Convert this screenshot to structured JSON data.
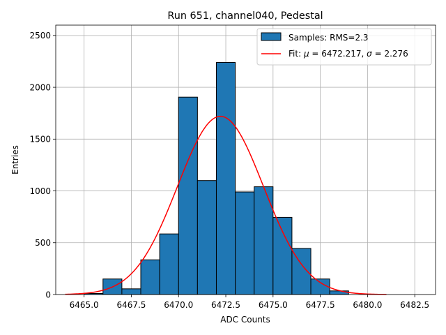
{
  "chart_data": {
    "type": "bar",
    "title": "Run 651, channel040, Pedestal",
    "xlabel": "ADC Counts",
    "ylabel": "Entries",
    "xlim": [
      6463.5,
      6483.6
    ],
    "ylim": [
      0,
      2600
    ],
    "grid": true,
    "legend_position": "top-right",
    "x_ticks": [
      6465.0,
      6467.5,
      6470.0,
      6472.5,
      6475.0,
      6477.5,
      6480.0,
      6482.5
    ],
    "x_tick_labels": [
      "6465.0",
      "6467.5",
      "6470.0",
      "6472.5",
      "6475.0",
      "6477.5",
      "6480.0",
      "6482.5"
    ],
    "y_ticks": [
      0,
      500,
      1000,
      1500,
      2000,
      2500
    ],
    "y_tick_labels": [
      "0",
      "500",
      "1000",
      "1500",
      "2000",
      "2500"
    ],
    "histogram": {
      "name": "Samples: RMS=2.3",
      "color": "#1f77b4",
      "edge_color": "#000000",
      "bin_edges": [
        6464.0,
        6465.0,
        6466.0,
        6467.0,
        6468.0,
        6469.0,
        6470.0,
        6471.0,
        6472.0,
        6473.0,
        6474.0,
        6475.0,
        6476.0,
        6477.0,
        6478.0,
        6479.0,
        6480.0,
        6481.0,
        6482.0,
        6483.0
      ],
      "counts": [
        0,
        10,
        150,
        55,
        335,
        585,
        1905,
        1100,
        2240,
        990,
        1040,
        745,
        445,
        150,
        35,
        0,
        0,
        0,
        0
      ]
    },
    "fit": {
      "name": "Fit: μ = 6472.217, σ = 2.276",
      "label_prefix": "Fit: ",
      "mu_symbol": "μ",
      "mu_text": " = 6472.217, ",
      "sigma_symbol": "σ",
      "sigma_text": " = 2.276",
      "color": "#ff0000",
      "mu": 6472.217,
      "sigma": 2.276,
      "amplitude": 1720,
      "x_range": [
        6464.0,
        6481.0
      ]
    }
  }
}
